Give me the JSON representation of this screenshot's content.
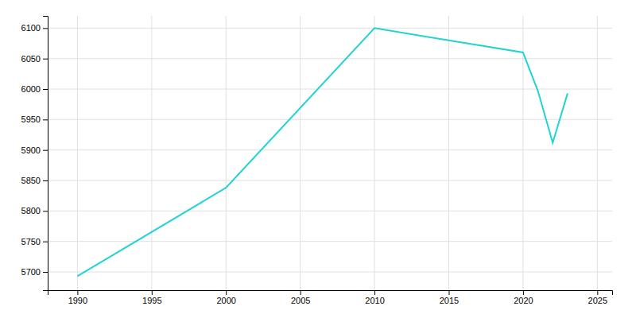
{
  "chart_data": {
    "type": "line",
    "x": [
      1990,
      2000,
      2010,
      2015,
      2020,
      2021,
      2022,
      2023
    ],
    "values": [
      5693,
      5838,
      6100,
      6080,
      6060,
      5997,
      5912,
      5993
    ],
    "color": "#22d3d3",
    "xlim": [
      1988,
      2026
    ],
    "ylim": [
      5670,
      6120
    ],
    "xticks": [
      1990,
      1995,
      2000,
      2005,
      2010,
      2015,
      2020,
      2025
    ],
    "yticks": [
      5700,
      5750,
      5800,
      5850,
      5900,
      5950,
      6000,
      6050,
      6100
    ],
    "grid": true
  }
}
